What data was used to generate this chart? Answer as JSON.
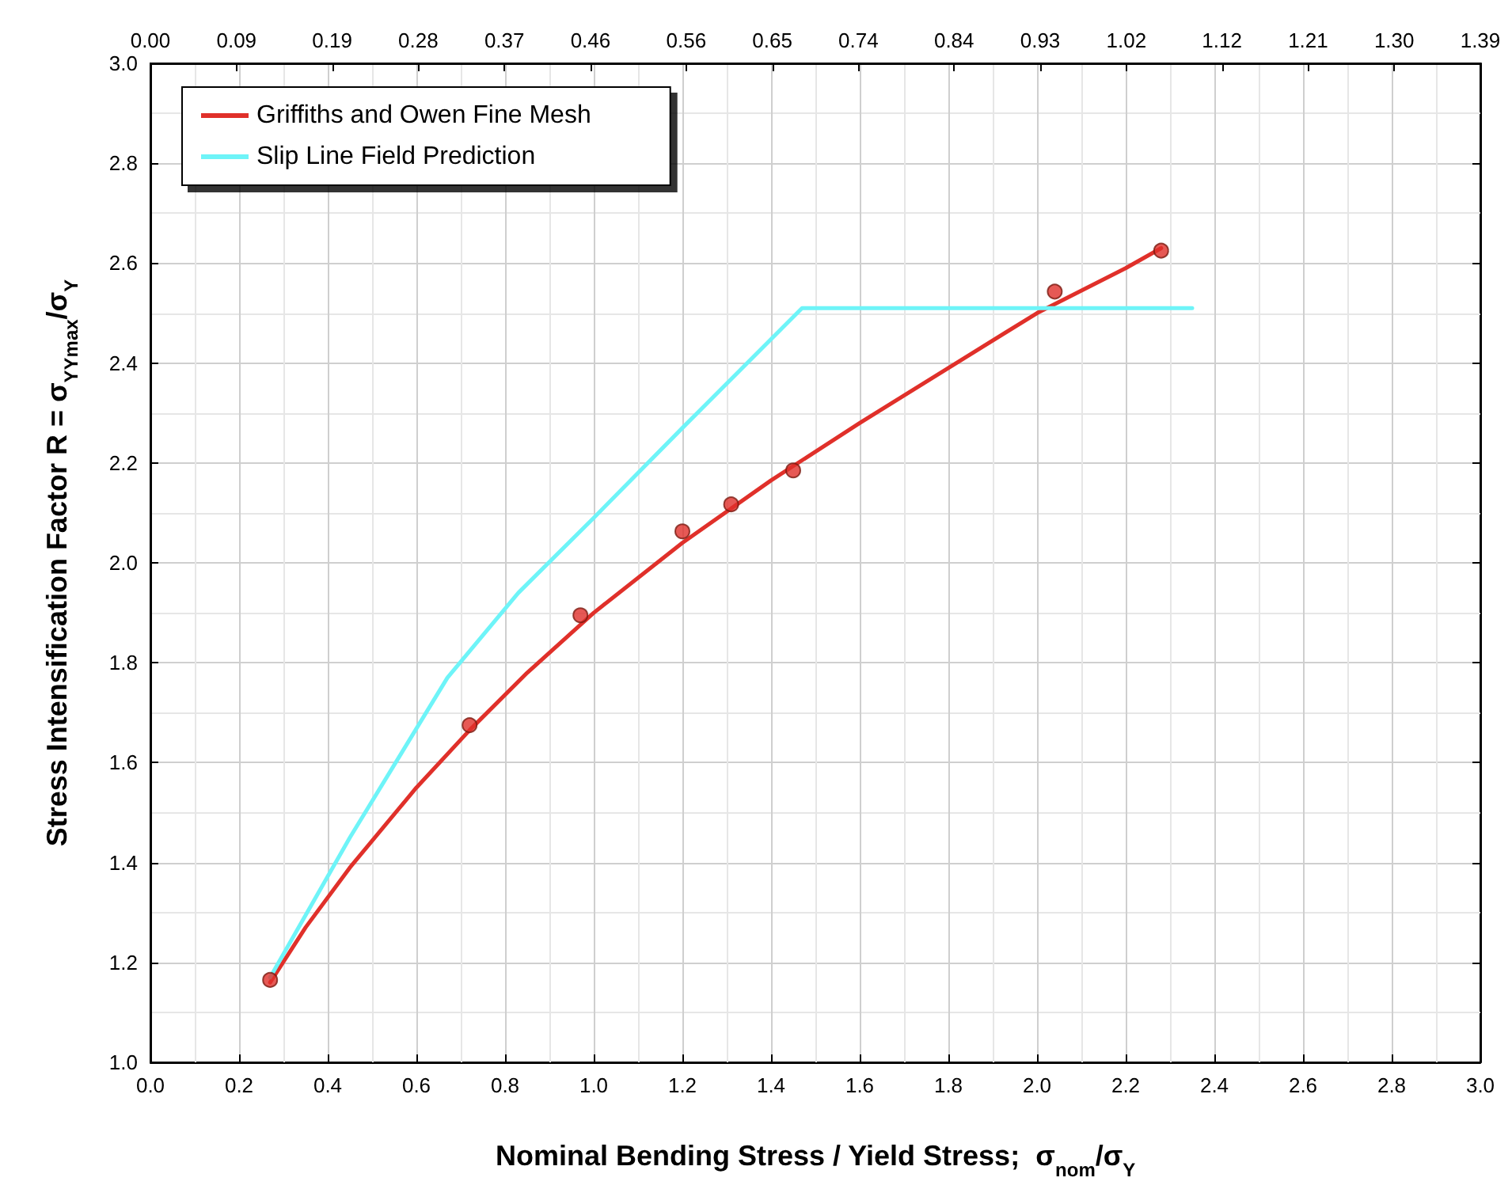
{
  "chart_data": {
    "type": "line",
    "xlabel": "Nominal Bending Stress / Yield Stress;  σ$_{nom}$/σ$_{Y}$",
    "ylabel": "Stress Intensification Factor R = σ$_{YYmax}$/σ$_{Y}$",
    "xlim": [
      0,
      3.0
    ],
    "xticks": [
      {
        "value": 0,
        "label": "0.0"
      },
      0.2,
      0.4,
      0.6,
      0.8,
      {
        "value": 1,
        "label": "1.0"
      },
      1.2,
      1.4,
      1.6,
      1.8,
      {
        "value": 2,
        "label": "2.0"
      },
      2.2,
      2.4,
      2.6,
      2.8,
      {
        "value": 3,
        "label": "3.0"
      }
    ],
    "x2lim": [
      0,
      1.39
    ],
    "x2ticks": [
      {
        "value": 0,
        "label": "0.00"
      },
      0.09,
      0.19,
      0.28,
      0.37,
      0.46,
      0.56,
      0.65,
      0.74,
      0.84,
      0.93,
      1.02,
      1.12,
      1.21,
      {
        "value": 1.3,
        "label": "1.30"
      },
      1.39
    ],
    "ylim": [
      1.0,
      3.0
    ],
    "yticks": [
      {
        "value": 1,
        "label": "1.0"
      },
      1.2,
      1.4,
      1.6,
      1.8,
      {
        "value": 2,
        "label": "2.0"
      },
      2.2,
      2.4,
      2.6,
      2.8,
      {
        "value": 3,
        "label": "3.0"
      }
    ],
    "grid": true,
    "legend": "top left",
    "series": [
      {
        "name": "Griffiths and Owen Fine Mesh",
        "color": "#e0302a",
        "marker": "none",
        "line_style": "solid",
        "x": [
          0.27,
          0.35,
          0.45,
          0.6,
          0.72,
          0.85,
          1.0,
          1.2,
          1.4,
          1.6,
          1.8,
          2.0,
          2.2,
          2.28
        ],
        "values": [
          1.16,
          1.27,
          1.39,
          1.55,
          1.665,
          1.78,
          1.9,
          2.04,
          2.165,
          2.28,
          2.39,
          2.5,
          2.59,
          2.63
        ]
      },
      {
        "name": "Slip Line Field Prediction",
        "color": "#6ef4f8",
        "marker": "none",
        "line_style": "solid",
        "x": [
          0.27,
          0.45,
          0.67,
          0.83,
          1.0,
          1.2,
          1.47,
          2.35
        ],
        "values": [
          1.17,
          1.45,
          1.77,
          1.94,
          2.09,
          2.27,
          2.51,
          2.51
        ]
      },
      {
        "type": "scatter",
        "color": "#e0302a",
        "marker": "circle",
        "x": [
          0.27,
          0.72,
          0.97,
          1.2,
          1.31,
          1.45,
          2.04,
          2.28
        ],
        "values": [
          1.165,
          1.675,
          1.895,
          2.063,
          2.117,
          2.185,
          2.543,
          2.625
        ]
      }
    ]
  }
}
